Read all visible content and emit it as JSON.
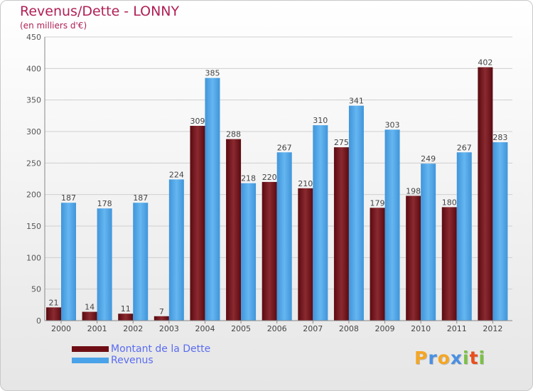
{
  "header": {
    "title": "Revenus/Dette - LONNY",
    "subtitle": "(en milliers d'€)"
  },
  "brand": {
    "letters": [
      "P",
      "r",
      "o",
      "x",
      "i",
      "t",
      "i"
    ],
    "colors": [
      "#f5a623",
      "#4a90e2",
      "#f5a623",
      "#4a90e2",
      "#7ac143",
      "#e94e1b",
      "#7ac143"
    ]
  },
  "colors": {
    "debt": "#6e0e14",
    "revenue": "#4aa3e8",
    "legend_text": "#5a6cf0"
  },
  "chart_data": {
    "type": "bar",
    "categories": [
      "2000",
      "2001",
      "2002",
      "2003",
      "2004",
      "2005",
      "2006",
      "2007",
      "2008",
      "2009",
      "2010",
      "2011",
      "2012"
    ],
    "series": [
      {
        "name": "Montant de la Dette",
        "values": [
          21,
          14,
          11,
          7,
          309,
          288,
          220,
          210,
          275,
          179,
          198,
          180,
          402
        ]
      },
      {
        "name": "Revenus",
        "values": [
          187,
          178,
          187,
          224,
          385,
          218,
          267,
          310,
          341,
          303,
          249,
          267,
          283
        ]
      }
    ],
    "title": "Revenus/Dette - LONNY",
    "ylabel": "(en milliers d'€)",
    "ylim": [
      0,
      450
    ],
    "yticks": [
      0,
      50,
      100,
      150,
      200,
      250,
      300,
      350,
      400,
      450
    ],
    "grid": true,
    "legend": "bottom-left"
  }
}
